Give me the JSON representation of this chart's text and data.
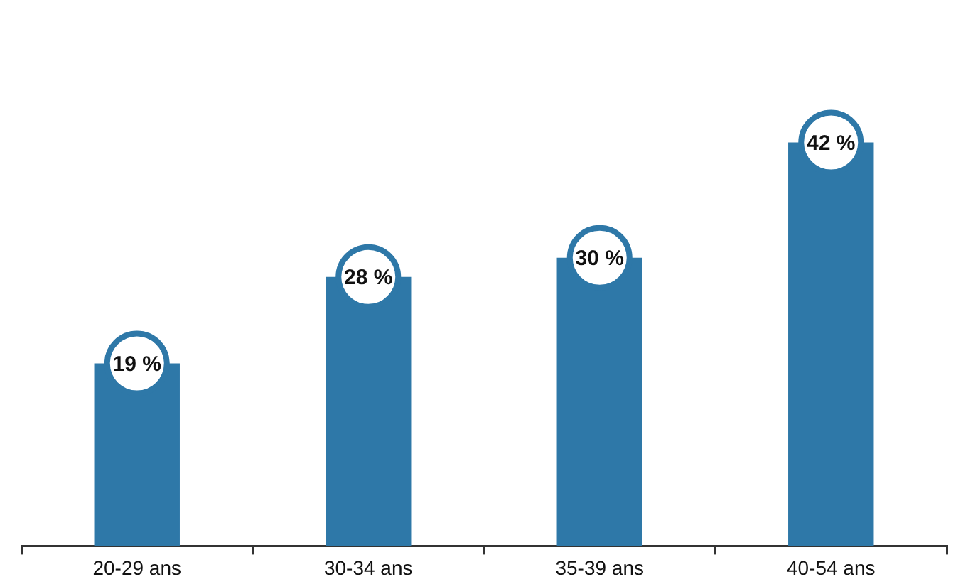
{
  "chart_data": {
    "type": "bar",
    "categories": [
      "20-29 ans",
      "30-34 ans",
      "35-39 ans",
      "40-54 ans"
    ],
    "values": [
      19,
      28,
      30,
      42
    ],
    "color": "#2e78a8",
    "value_labels": [
      "19 %",
      "28 %",
      "30 %",
      "42 %"
    ],
    "tick_labels": "x",
    "grid": false,
    "legend": false
  }
}
